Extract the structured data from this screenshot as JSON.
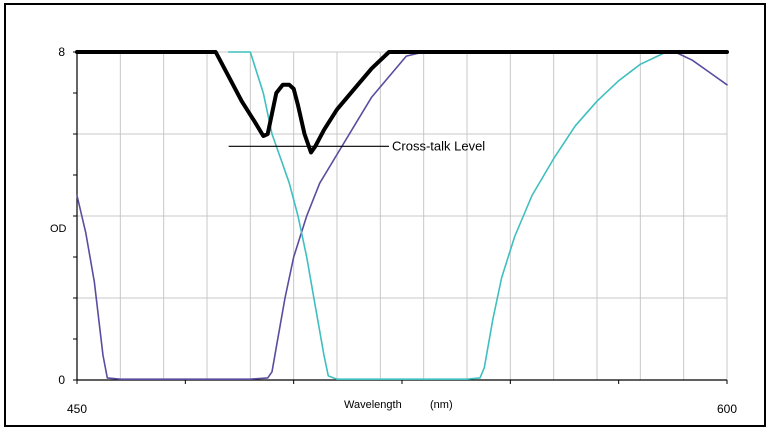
{
  "chart_data": {
    "type": "line",
    "title": "",
    "xlabel": "Wavelength",
    "xlabel_unit": "(nm)",
    "ylabel": "OD",
    "xlim": [
      450,
      600
    ],
    "ylim": [
      0,
      8
    ],
    "x_tick_labels": [
      {
        "value": 450,
        "label": "450"
      },
      {
        "value": 600,
        "label": "600"
      }
    ],
    "y_tick_labels": [
      {
        "value": 0,
        "label": "0"
      },
      {
        "value": 8,
        "label": "8"
      }
    ],
    "x_gridlines": [
      450,
      460,
      470,
      480,
      490,
      500,
      510,
      520,
      530,
      540,
      550,
      560,
      570,
      580,
      590,
      600
    ],
    "y_gridlines": [
      0,
      2,
      4,
      6,
      8
    ],
    "grid": true,
    "annotation": {
      "text": "Cross-talk Level",
      "y": 5.7,
      "x_start": 485,
      "x_end": 522
    },
    "series": [
      {
        "color": "#5b4c9f",
        "stroke_width": 1.6,
        "points": [
          [
            450,
            4.5
          ],
          [
            452,
            3.6
          ],
          [
            454,
            2.4
          ],
          [
            456,
            0.6
          ],
          [
            457,
            0.05
          ],
          [
            460,
            0.02
          ],
          [
            470,
            0.02
          ],
          [
            480,
            0.02
          ],
          [
            490,
            0.02
          ],
          [
            494,
            0.05
          ],
          [
            495,
            0.2
          ],
          [
            496,
            0.8
          ],
          [
            498,
            2.0
          ],
          [
            500,
            3.0
          ],
          [
            503,
            4.0
          ],
          [
            506,
            4.8
          ],
          [
            510,
            5.5
          ],
          [
            514,
            6.2
          ],
          [
            518,
            6.9
          ],
          [
            522,
            7.4
          ],
          [
            526,
            7.9
          ],
          [
            530,
            8.0
          ],
          [
            540,
            8.0
          ],
          [
            550,
            8.0
          ],
          [
            560,
            8.0
          ],
          [
            570,
            8.0
          ],
          [
            582,
            8.0
          ],
          [
            588,
            8.0
          ],
          [
            592,
            7.8
          ],
          [
            596,
            7.5
          ],
          [
            600,
            7.2
          ]
        ]
      },
      {
        "color": "#3fbfbf",
        "stroke_width": 1.6,
        "points": [
          [
            485,
            8.0
          ],
          [
            490,
            8.0
          ],
          [
            493,
            7.0
          ],
          [
            495,
            6.0
          ],
          [
            497,
            5.4
          ],
          [
            499,
            4.8
          ],
          [
            501,
            4.0
          ],
          [
            503,
            3.0
          ],
          [
            505,
            1.8
          ],
          [
            507,
            0.6
          ],
          [
            508,
            0.1
          ],
          [
            510,
            0.02
          ],
          [
            520,
            0.02
          ],
          [
            530,
            0.02
          ],
          [
            540,
            0.02
          ],
          [
            543,
            0.05
          ],
          [
            544,
            0.3
          ],
          [
            546,
            1.5
          ],
          [
            548,
            2.5
          ],
          [
            551,
            3.5
          ],
          [
            555,
            4.5
          ],
          [
            560,
            5.4
          ],
          [
            565,
            6.2
          ],
          [
            570,
            6.8
          ],
          [
            575,
            7.3
          ],
          [
            580,
            7.7
          ],
          [
            586,
            8.0
          ],
          [
            590,
            8.0
          ],
          [
            595,
            8.0
          ],
          [
            600,
            8.0
          ]
        ]
      },
      {
        "color": "#000000",
        "stroke_width": 4,
        "points": [
          [
            450,
            8.0
          ],
          [
            460,
            8.0
          ],
          [
            470,
            8.0
          ],
          [
            482,
            8.0
          ],
          [
            485,
            7.4
          ],
          [
            488,
            6.8
          ],
          [
            491,
            6.3
          ],
          [
            493,
            5.95
          ],
          [
            494,
            6.0
          ],
          [
            495,
            6.5
          ],
          [
            496,
            7.0
          ],
          [
            497.5,
            7.2
          ],
          [
            499,
            7.2
          ],
          [
            500,
            7.1
          ],
          [
            501,
            6.7
          ],
          [
            502.5,
            6.0
          ],
          [
            504,
            5.55
          ],
          [
            505,
            5.7
          ],
          [
            507,
            6.1
          ],
          [
            510,
            6.6
          ],
          [
            514,
            7.1
          ],
          [
            518,
            7.6
          ],
          [
            522,
            8.0
          ],
          [
            530,
            8.0
          ],
          [
            540,
            8.0
          ],
          [
            550,
            8.0
          ],
          [
            560,
            8.0
          ],
          [
            570,
            8.0
          ],
          [
            580,
            8.0
          ],
          [
            590,
            8.0
          ],
          [
            600,
            8.0
          ]
        ]
      }
    ]
  }
}
